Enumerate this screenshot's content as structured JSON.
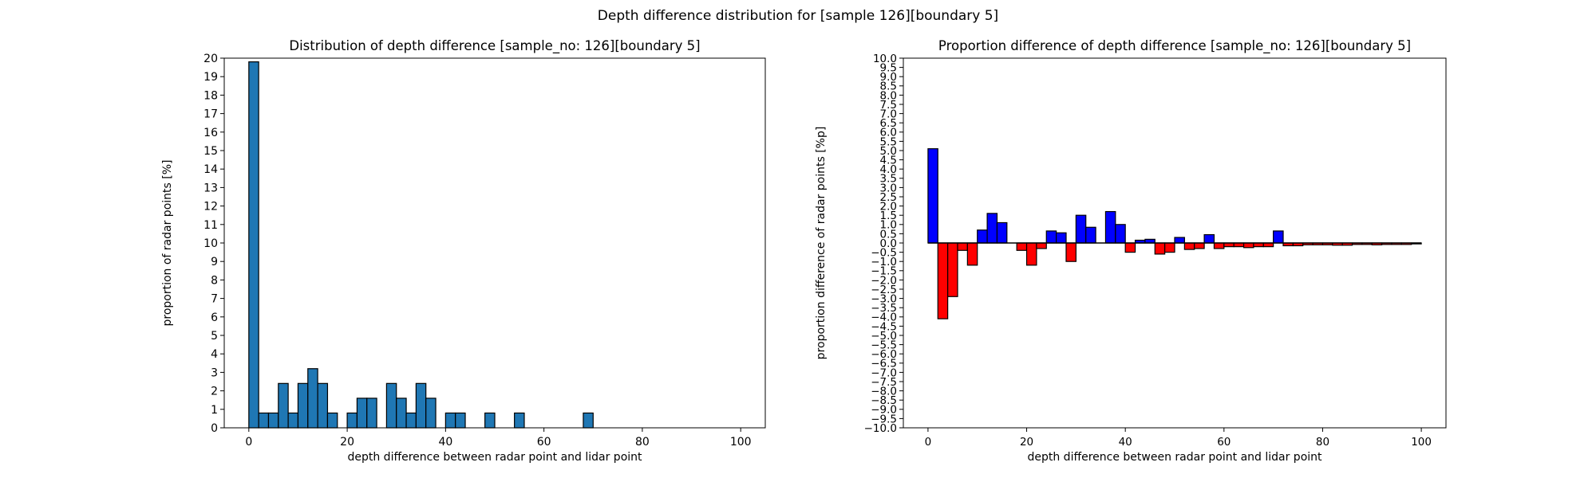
{
  "suptitle": "Depth difference distribution for [sample 126][boundary 5]",
  "chart_data": [
    {
      "type": "bar",
      "title": "Distribution of depth difference [sample_no: 126][boundary 5]",
      "xlabel": "depth difference between radar point and lidar point",
      "ylabel": "proportion of radar points [%]",
      "xlim": [
        -5,
        105
      ],
      "ylim": [
        0,
        20
      ],
      "bin_width": 2,
      "xticks": [
        0,
        20,
        40,
        60,
        80,
        100
      ],
      "yticks": [
        0,
        1,
        2,
        3,
        4,
        5,
        6,
        7,
        8,
        9,
        10,
        11,
        12,
        13,
        14,
        15,
        16,
        17,
        18,
        19,
        20
      ],
      "ytick_labels": [
        "0",
        "1",
        "2",
        "3",
        "4",
        "5",
        "6",
        "7",
        "8",
        "9",
        "10",
        "11",
        "12",
        "13",
        "14",
        "15",
        "16",
        "17",
        "18",
        "19",
        "20"
      ],
      "bar_color": "#1f77b4",
      "edge_color": "#000000",
      "x": [
        0,
        2,
        4,
        6,
        8,
        10,
        12,
        14,
        16,
        20,
        22,
        24,
        28,
        30,
        32,
        34,
        36,
        40,
        42,
        48,
        54,
        68
      ],
      "values": [
        19.8,
        0.8,
        0.8,
        2.4,
        0.8,
        2.4,
        3.2,
        2.4,
        0.8,
        0.8,
        1.6,
        1.6,
        2.4,
        1.6,
        0.8,
        2.4,
        1.6,
        0.8,
        0.8,
        0.8,
        0.8,
        0.8
      ]
    },
    {
      "type": "bar",
      "title": "Proportion difference of depth difference [sample_no: 126][boundary 5]",
      "xlabel": "depth difference between radar point and lidar point",
      "ylabel": "proportion difference of radar points [%p]",
      "xlim": [
        -5,
        105
      ],
      "ylim": [
        -10,
        10
      ],
      "bin_width": 2,
      "xticks": [
        0,
        20,
        40,
        60,
        80,
        100
      ],
      "yticks": [
        10,
        9.5,
        9,
        8.5,
        8,
        7.5,
        7,
        6.5,
        6,
        5.5,
        5,
        4.5,
        4,
        3.5,
        3,
        2.5,
        2,
        1.5,
        1,
        0.5,
        0,
        -0.5,
        -1,
        -1.5,
        -2,
        -2.5,
        -3,
        -3.5,
        -4,
        -4.5,
        -5,
        -5.5,
        -6,
        -6.5,
        -7,
        -7.5,
        -8,
        -8.5,
        -9,
        -9.5,
        -10
      ],
      "ytick_labels": [
        "10.0",
        "9.5",
        "9.0",
        "8.5",
        "8.0",
        "7.5",
        "7.0",
        "6.5",
        "6.0",
        "5.5",
        "5.0",
        "4.5",
        "4.0",
        "3.5",
        "3.0",
        "2.5",
        "2.0",
        "1.5",
        "1.0",
        "0.5",
        "0.0",
        "−0.5",
        "−1.0",
        "−1.5",
        "−2.0",
        "−2.5",
        "−3.0",
        "−3.5",
        "−4.0",
        "−4.5",
        "−5.0",
        "−5.5",
        "−6.0",
        "−6.5",
        "−7.0",
        "−7.5",
        "−8.0",
        "−8.5",
        "−9.0",
        "−9.5",
        "−10.0"
      ],
      "positive_color": "#0000ff",
      "negative_color": "#ff0000",
      "edge_color": "#000000",
      "x": [
        0,
        2,
        4,
        6,
        8,
        10,
        12,
        14,
        16,
        18,
        20,
        22,
        24,
        26,
        28,
        30,
        32,
        34,
        36,
        38,
        40,
        42,
        44,
        46,
        48,
        50,
        52,
        54,
        56,
        58,
        60,
        62,
        64,
        66,
        68,
        70,
        72,
        74,
        76,
        78,
        80,
        82,
        84,
        86,
        88,
        90,
        92,
        94,
        96,
        98
      ],
      "values": [
        5.1,
        -4.1,
        -2.9,
        -0.4,
        -1.2,
        0.7,
        1.6,
        1.1,
        0.0,
        -0.4,
        -1.2,
        -0.3,
        0.65,
        0.55,
        -1.0,
        1.5,
        0.85,
        0.0,
        1.7,
        1.0,
        -0.5,
        0.15,
        0.2,
        -0.6,
        -0.5,
        0.3,
        -0.35,
        -0.3,
        0.45,
        -0.3,
        -0.2,
        -0.2,
        -0.25,
        -0.2,
        -0.2,
        0.65,
        -0.15,
        -0.15,
        -0.1,
        -0.1,
        -0.1,
        -0.12,
        -0.12,
        -0.08,
        -0.08,
        -0.1,
        -0.08,
        -0.08,
        -0.08,
        -0.05
      ]
    }
  ]
}
